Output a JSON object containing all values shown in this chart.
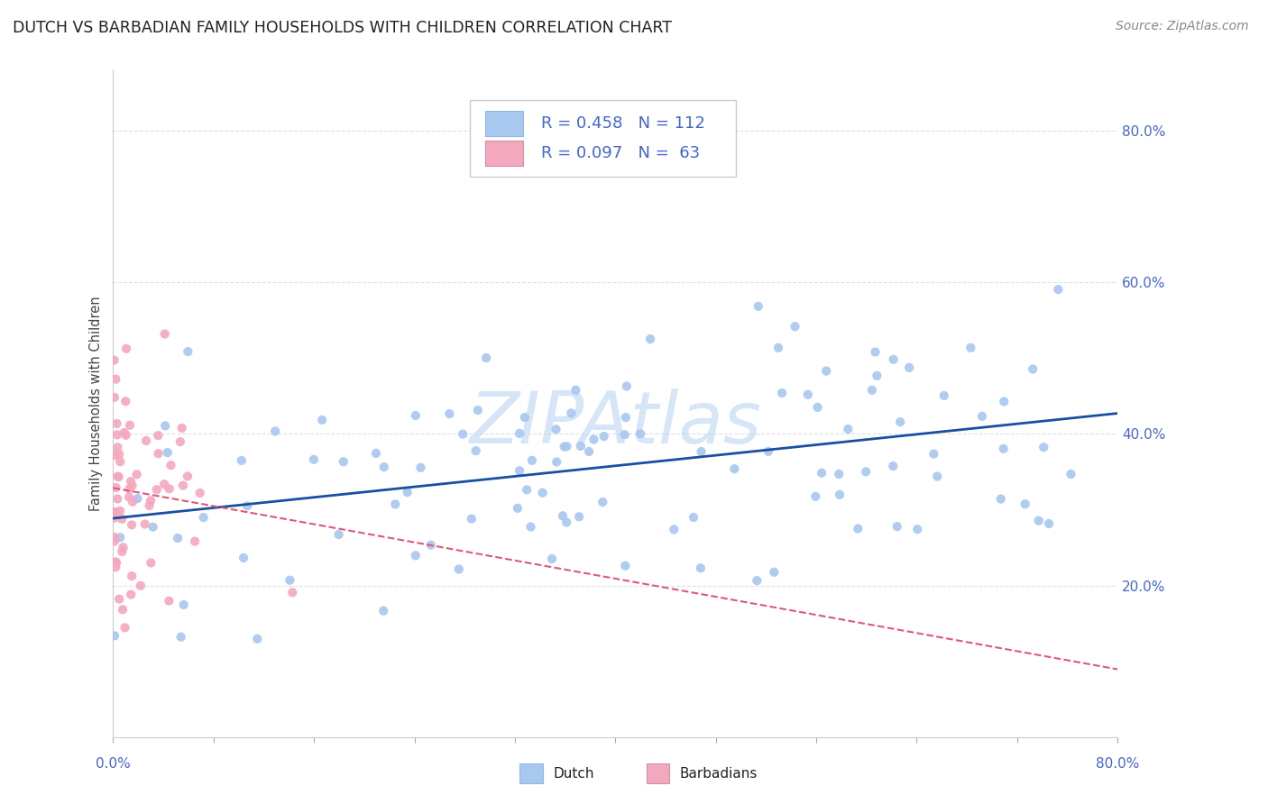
{
  "title": "DUTCH VS BARBADIAN FAMILY HOUSEHOLDS WITH CHILDREN CORRELATION CHART",
  "source": "Source: ZipAtlas.com",
  "ylabel": "Family Households with Children",
  "dutch_scatter_color": "#a8c8f0",
  "barbadian_scatter_color": "#f4a8be",
  "dutch_line_color": "#1a4fa0",
  "barbadian_line_color": "#e05878",
  "dutch_R": 0.458,
  "dutch_N": 112,
  "barbadian_R": 0.097,
  "barbadian_N": 63,
  "xlim": [
    0.0,
    0.8
  ],
  "ylim": [
    0.0,
    0.88
  ],
  "yticks": [
    0.2,
    0.4,
    0.6,
    0.8
  ],
  "watermark_text": "ZIPAtlas",
  "watermark_color": "#c5daf5",
  "grid_color": "#e0e0e0",
  "right_tick_color": "#4466cc"
}
